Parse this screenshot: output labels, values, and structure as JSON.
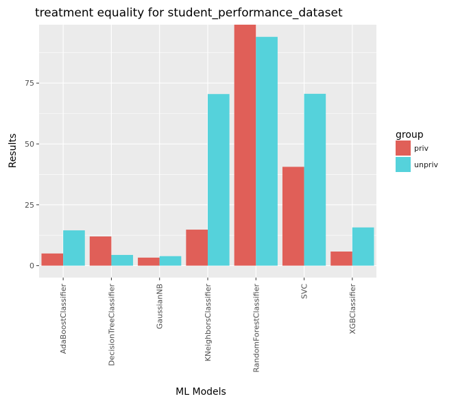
{
  "chart_data": {
    "type": "bar",
    "title": "treatment equality for student_performance_dataset",
    "xlabel": "ML Models",
    "ylabel": "Results",
    "categories": [
      "AdaBoostClassifier",
      "DecisionTreeClassifier",
      "GaussianNB",
      "KNeighborsClassifier",
      "RandomForestClassifier",
      "SVC",
      "XGBClassifier"
    ],
    "series": [
      {
        "name": "priv",
        "color": "#e05f58",
        "values": [
          5,
          12,
          3.3,
          14.8,
          99,
          40.6,
          5.8
        ]
      },
      {
        "name": "unpriv",
        "color": "#55d2db",
        "values": [
          14.5,
          4.4,
          3.9,
          70.5,
          94,
          70.6,
          15.7
        ]
      }
    ],
    "ylim": [
      -4.9,
      99
    ],
    "yticks": [
      0,
      25,
      50,
      75
    ],
    "grid": true,
    "legend_title": "group",
    "legend_position": "right",
    "panel_color": "#ebebeb",
    "grid_color": "#ffffff"
  }
}
